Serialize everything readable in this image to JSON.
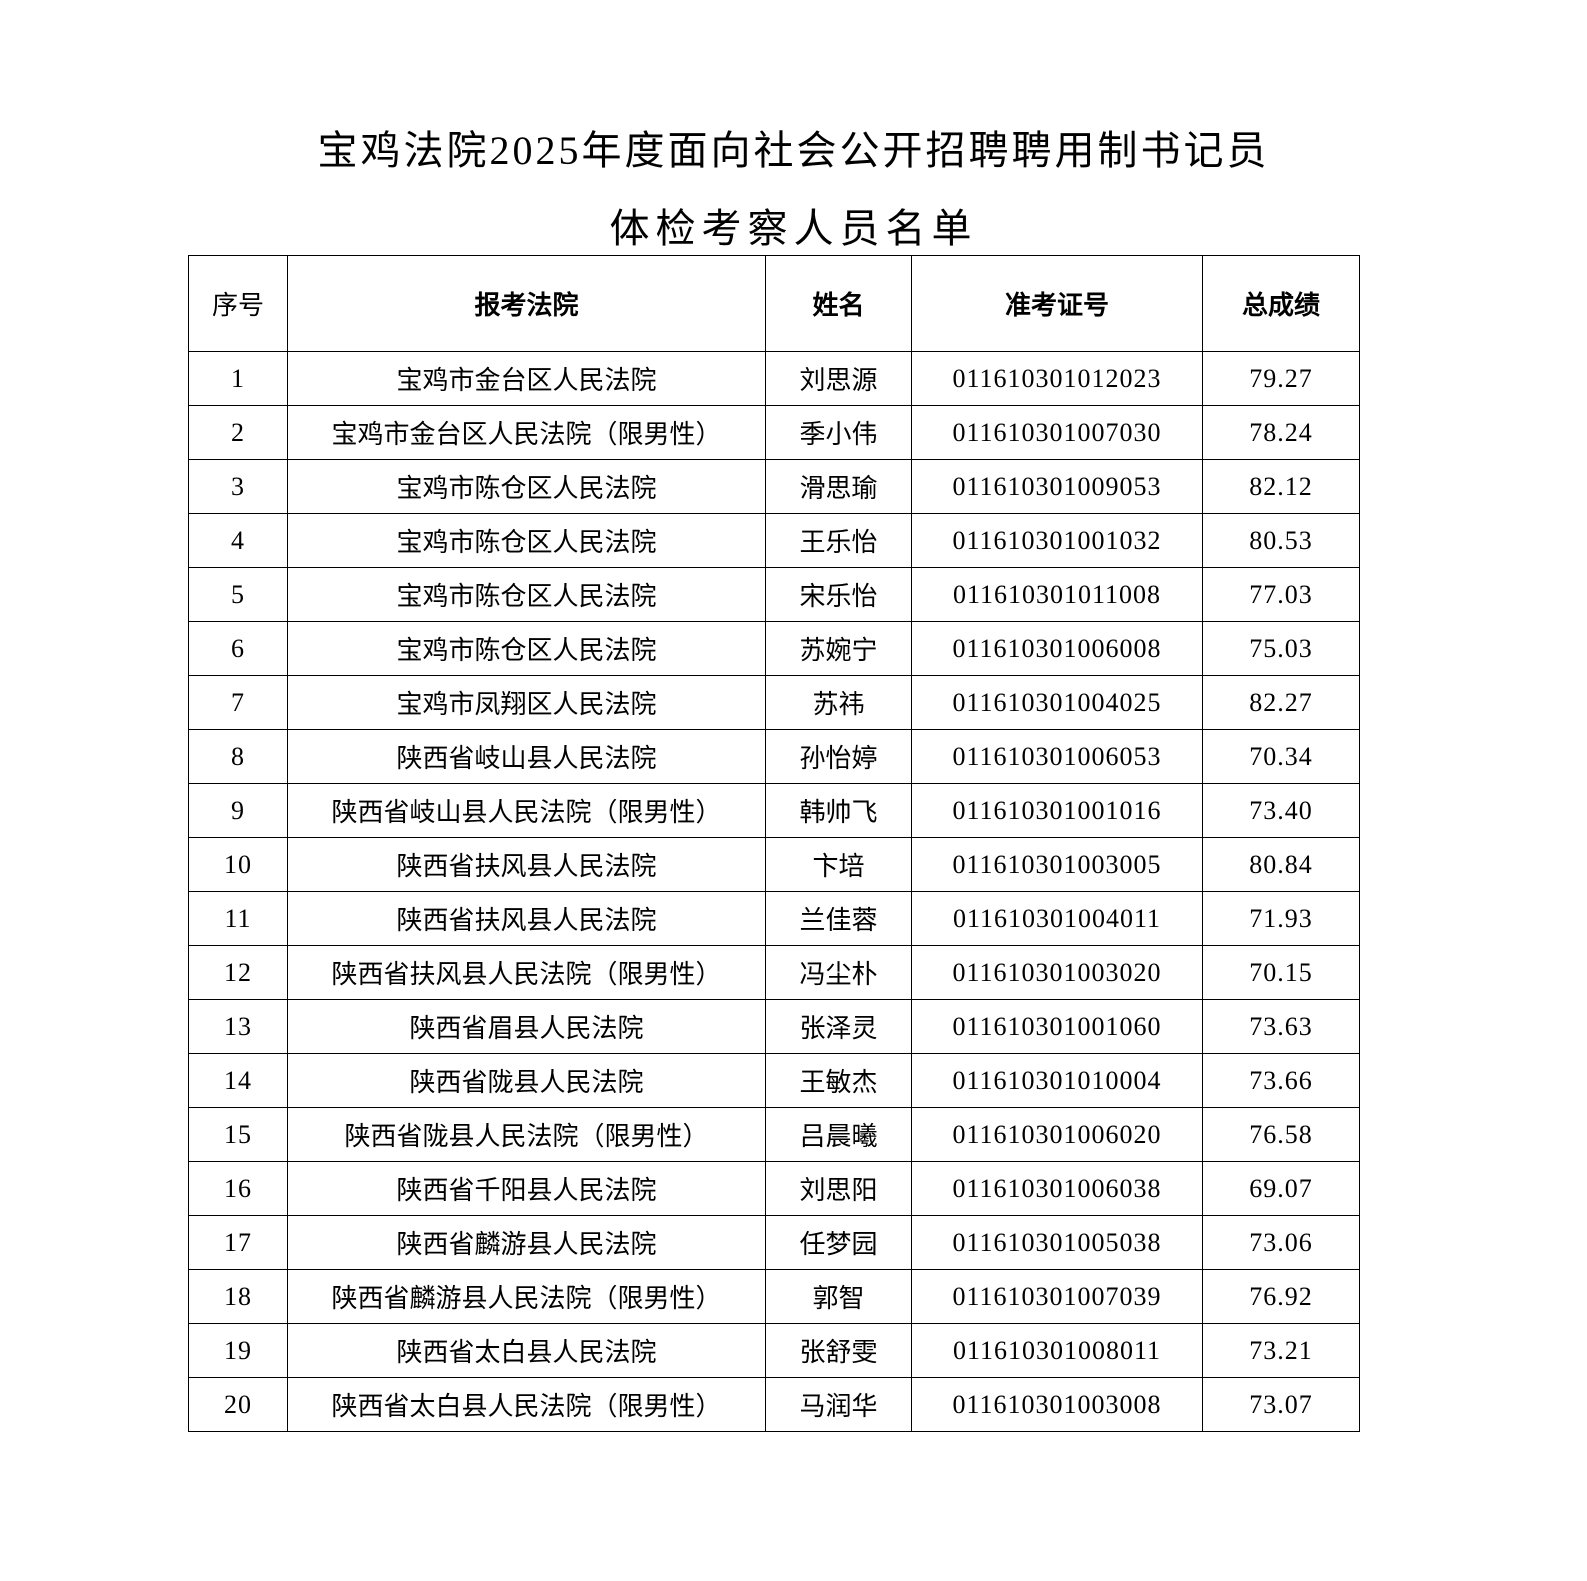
{
  "title_line1": "宝鸡法院2025年度面向社会公开招聘聘用制书记员",
  "title_line2": "体检考察人员名单",
  "headers": [
    "序号",
    "报考法院",
    "姓名",
    "准考证号",
    "总成绩"
  ],
  "rows": [
    [
      "1",
      "宝鸡市金台区人民法院",
      "刘思源",
      "011610301012023",
      "79.27"
    ],
    [
      "2",
      "宝鸡市金台区人民法院（限男性）",
      "季小伟",
      "011610301007030",
      "78.24"
    ],
    [
      "3",
      "宝鸡市陈仓区人民法院",
      "滑思瑜",
      "011610301009053",
      "82.12"
    ],
    [
      "4",
      "宝鸡市陈仓区人民法院",
      "王乐怡",
      "011610301001032",
      "80.53"
    ],
    [
      "5",
      "宝鸡市陈仓区人民法院",
      "宋乐怡",
      "011610301011008",
      "77.03"
    ],
    [
      "6",
      "宝鸡市陈仓区人民法院",
      "苏婉宁",
      "011610301006008",
      "75.03"
    ],
    [
      "7",
      "宝鸡市凤翔区人民法院",
      "苏祎",
      "011610301004025",
      "82.27"
    ],
    [
      "8",
      "陕西省岐山县人民法院",
      "孙怡婷",
      "011610301006053",
      "70.34"
    ],
    [
      "9",
      "陕西省岐山县人民法院（限男性）",
      "韩帅飞",
      "011610301001016",
      "73.40"
    ],
    [
      "10",
      "陕西省扶风县人民法院",
      "卞培",
      "011610301003005",
      "80.84"
    ],
    [
      "11",
      "陕西省扶风县人民法院",
      "兰佳蓉",
      "011610301004011",
      "71.93"
    ],
    [
      "12",
      "陕西省扶风县人民法院（限男性）",
      "冯尘朴",
      "011610301003020",
      "70.15"
    ],
    [
      "13",
      "陕西省眉县人民法院",
      "张泽灵",
      "011610301001060",
      "73.63"
    ],
    [
      "14",
      "陕西省陇县人民法院",
      "王敏杰",
      "011610301010004",
      "73.66"
    ],
    [
      "15",
      "陕西省陇县人民法院（限男性）",
      "吕晨曦",
      "011610301006020",
      "76.58"
    ],
    [
      "16",
      "陕西省千阳县人民法院",
      "刘思阳",
      "011610301006038",
      "69.07"
    ],
    [
      "17",
      "陕西省麟游县人民法院",
      "任梦园",
      "011610301005038",
      "73.06"
    ],
    [
      "18",
      "陕西省麟游县人民法院（限男性）",
      "郭智",
      "011610301007039",
      "76.92"
    ],
    [
      "19",
      "陕西省太白县人民法院",
      "张舒雯",
      "011610301008011",
      "73.21"
    ],
    [
      "20",
      "陕西省太白县人民法院（限男性）",
      "马润华",
      "011610301003008",
      "73.07"
    ]
  ]
}
